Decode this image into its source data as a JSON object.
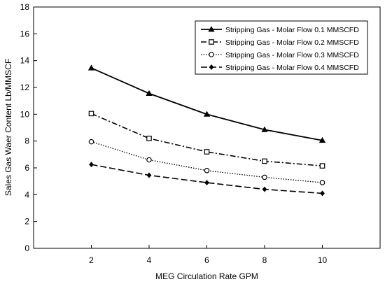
{
  "chart_data": {
    "type": "line",
    "title": "",
    "xlabel": "MEG Circulation Rate GPM",
    "ylabel": "Sales Gas Waer Content Lb/MMSCF",
    "x": [
      2,
      4,
      6,
      8,
      10
    ],
    "xlim": [
      0,
      12
    ],
    "ylim": [
      0,
      18
    ],
    "xticks": [
      "2",
      "4",
      "6",
      "8",
      "10"
    ],
    "yticks": [
      "0",
      "2",
      "4",
      "6",
      "8",
      "10",
      "12",
      "14",
      "16",
      "18"
    ],
    "grid": false,
    "legend_position": "top-right",
    "series": [
      {
        "name": "Stripping Gas - Molar Flow 0.1 MMSCFD",
        "values": [
          13.45,
          11.55,
          10.0,
          8.85,
          8.05
        ],
        "line_style": "solid",
        "marker": "filled-triangle"
      },
      {
        "name": "Stripping Gas - Molar Flow 0.2 MMSCFD",
        "values": [
          10.05,
          8.2,
          7.2,
          6.5,
          6.15
        ],
        "line_style": "dash-dot",
        "marker": "open-square"
      },
      {
        "name": "Stripping Gas - Molar Flow 0.3 MMSCFD",
        "values": [
          7.95,
          6.6,
          5.8,
          5.3,
          4.9
        ],
        "line_style": "dotted",
        "marker": "open-circle"
      },
      {
        "name": "Stripping Gas - Molar Flow 0.4 MMSCFD",
        "values": [
          6.25,
          5.45,
          4.9,
          4.4,
          4.1
        ],
        "line_style": "dashed",
        "marker": "filled-diamond"
      }
    ]
  }
}
